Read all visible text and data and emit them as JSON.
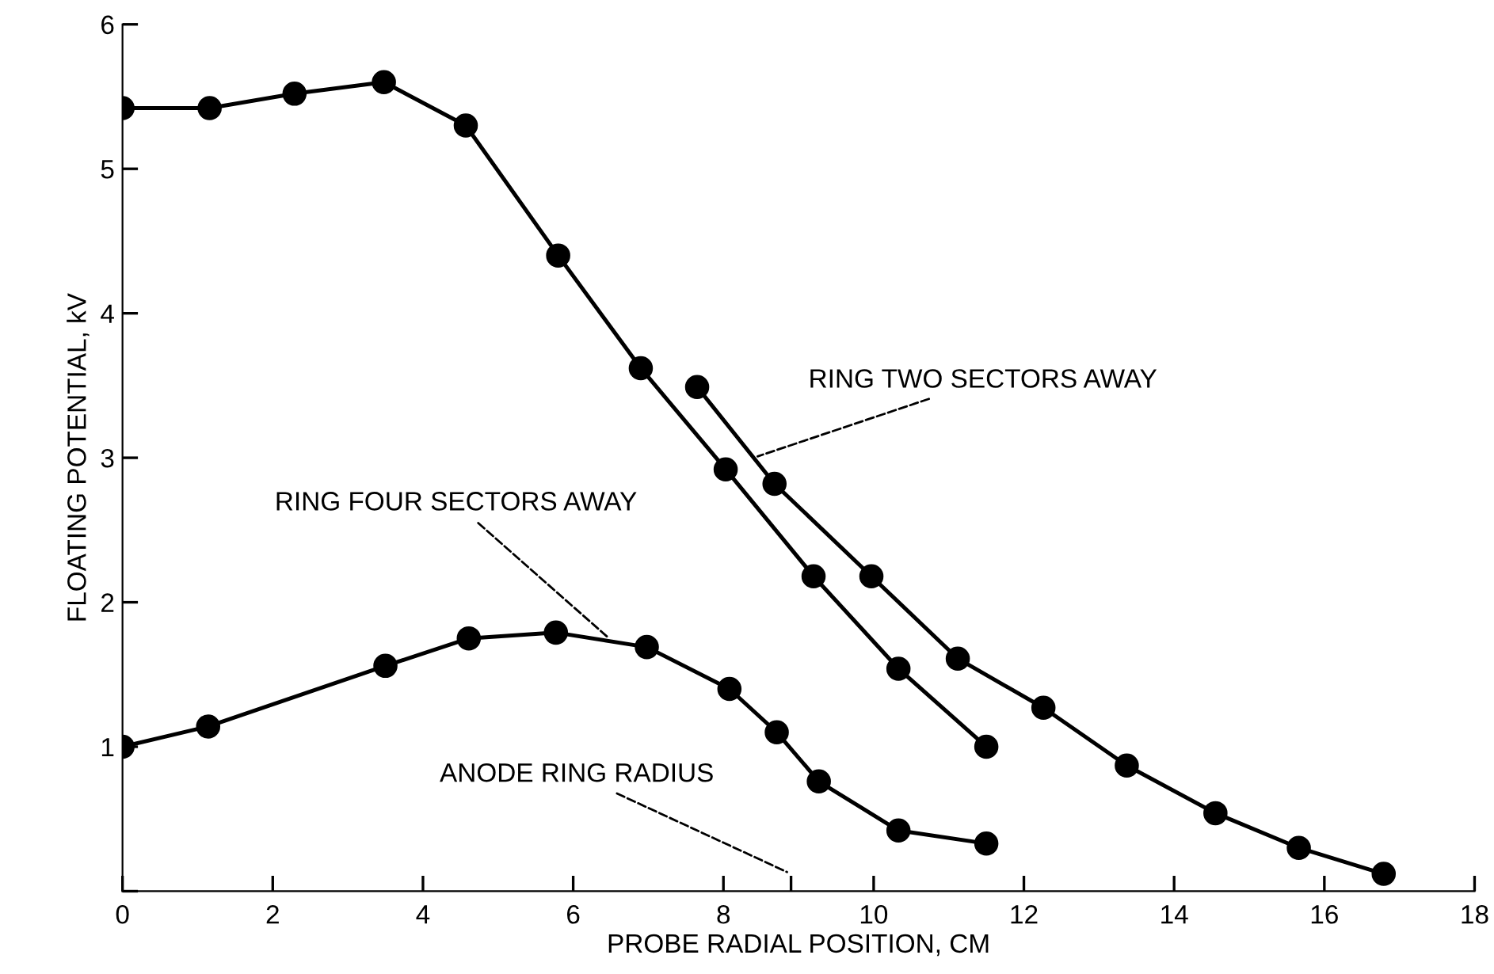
{
  "chart_data": {
    "type": "line",
    "xlabel": "PROBE RADIAL POSITION, CM",
    "ylabel": "FLOATING POTENTIAL, kV",
    "series": [
      {
        "color": "#000000",
        "x": [
          0,
          1.16,
          2.29,
          3.48,
          4.57,
          5.8,
          6.9,
          8.03,
          9.2,
          10.33,
          11.5
        ],
        "values": [
          5.42,
          5.42,
          5.52,
          5.6,
          5.3,
          4.4,
          3.62,
          2.92,
          2.18,
          1.54,
          1.0
        ]
      },
      {
        "color": "#000000",
        "x": [
          7.65,
          8.68,
          9.97,
          11.12,
          12.26,
          13.37,
          14.55,
          15.66,
          16.79
        ],
        "values": [
          3.49,
          2.82,
          2.18,
          1.61,
          1.27,
          0.87,
          0.54,
          0.3,
          0.12
        ]
      },
      {
        "color": "#000000",
        "x": [
          0,
          1.14,
          3.5,
          4.61,
          5.77,
          6.98,
          8.08,
          8.71,
          9.27,
          10.33,
          11.5
        ],
        "values": [
          1.0,
          1.14,
          1.56,
          1.75,
          1.79,
          1.69,
          1.4,
          1.1,
          0.76,
          0.42,
          0.33
        ]
      }
    ],
    "annotations": [
      {
        "text": "RING TWO SECTORS AWAY",
        "x": 8.4,
        "y": 3.0
      },
      {
        "text": "RING FOUR SECTORS AWAY",
        "x": 6.5,
        "y": 1.74
      },
      "ANODE RING RADIUS"
    ],
    "xlim": [
      0,
      18
    ],
    "xticks": [
      0,
      2,
      4,
      6,
      8,
      {
        "value": 8.9,
        "label": null
      },
      10,
      12,
      14,
      16,
      18
    ],
    "ylim": [
      0,
      6
    ],
    "yticks": [
      {
        "value": 0,
        "label": null
      },
      1,
      2,
      3,
      4,
      5,
      6
    ],
    "grid": false,
    "legend": false,
    "marker": "circle",
    "line_style": "solid"
  }
}
